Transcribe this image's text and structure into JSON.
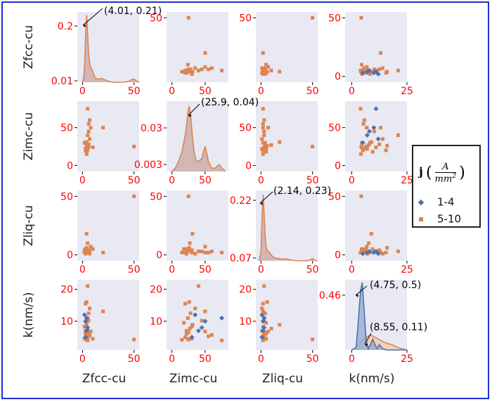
{
  "chart_data": {
    "type": "pairplot",
    "variables": [
      "Zfcc-cu",
      "Zimc-cu",
      "Zliq-cu",
      "k(nm/s)"
    ],
    "legend": {
      "title": "j(A/mm²)",
      "title_math": {
        "bold": "j",
        "numerator": "A",
        "denominator": "mm",
        "exponent": "2"
      },
      "placement": "right",
      "entries": [
        {
          "label": "1-4",
          "color": "#4c72b0",
          "marker": "diamond"
        },
        {
          "label": "5-10",
          "color": "#dd8452",
          "marker": "square"
        }
      ]
    },
    "colors": {
      "background": "#e8e9f2",
      "tick_red": "#ff0000",
      "frame": "#1f2fcf",
      "density_fill": "#c9a6a0"
    },
    "tick_labels": {
      "r0c0": {
        "y": [
          "0.2",
          "0.01"
        ],
        "x": [
          "0",
          "50"
        ]
      },
      "r0c1": {
        "y": [
          "50"
        ],
        "x": [
          "0",
          "50"
        ]
      },
      "r0c2": {
        "y": [
          "50"
        ],
        "x": [
          "0",
          "50"
        ]
      },
      "r0c3": {
        "y": [
          "50",
          "0"
        ],
        "x": [
          "0",
          "25"
        ]
      },
      "r1c0": {
        "y": [
          "50",
          "0"
        ],
        "x": [
          "0",
          "50"
        ]
      },
      "r1c1": {
        "y": [
          "0.03",
          "0.003"
        ],
        "x": [
          "0",
          "50"
        ]
      },
      "r1c2": {
        "y": [
          "50",
          "0"
        ],
        "x": [
          "0",
          "50"
        ]
      },
      "r1c3": {
        "y": [
          "50",
          "0"
        ],
        "x": [
          "0",
          "25"
        ]
      },
      "r2c0": {
        "y": [
          "50",
          "0"
        ],
        "x": [
          "0",
          "50"
        ]
      },
      "r2c1": {
        "y": [
          "50",
          "0"
        ],
        "x": [
          "0",
          "50"
        ]
      },
      "r2c2": {
        "y": [
          "0.22",
          "0.07"
        ],
        "x": [
          "0",
          "50"
        ]
      },
      "r2c3": {
        "y": [
          "50",
          "0"
        ],
        "x": [
          "0",
          "25"
        ]
      },
      "r3c0": {
        "y": [
          "20",
          "10"
        ],
        "x": [
          "0",
          "50"
        ]
      },
      "r3c1": {
        "y": [
          "20",
          "10"
        ],
        "x": [
          "0",
          "50"
        ]
      },
      "r3c2": {
        "y": [
          "20",
          "10"
        ],
        "x": [
          "0",
          "50"
        ]
      },
      "r3c3": {
        "y": [
          "0.46"
        ],
        "x": [
          "0",
          "25"
        ]
      }
    },
    "annotations": [
      {
        "panel": "r0c0",
        "text": "(4.01, 0.21)"
      },
      {
        "panel": "r1c1",
        "text": "(25.9, 0.04)"
      },
      {
        "panel": "r2c2",
        "text": "(2.14, 0.23)"
      },
      {
        "panel": "r3c3",
        "text": "(4.75, 0.5)"
      },
      {
        "panel": "r3c3",
        "text": "(8.55, 0.11)"
      }
    ],
    "diagonal": {
      "r0c0": {
        "x": [
          0,
          1,
          2,
          3,
          3.5,
          4.01,
          4.5,
          5,
          6,
          7,
          8,
          9,
          10,
          11,
          12,
          14,
          16,
          18,
          20,
          25,
          30,
          35,
          40,
          45,
          48,
          50,
          52,
          55
        ],
        "y": [
          0,
          0.01,
          0.05,
          0.14,
          0.18,
          0.21,
          0.19,
          0.15,
          0.09,
          0.06,
          0.045,
          0.04,
          0.035,
          0.025,
          0.015,
          0.01,
          0.01,
          0.012,
          0.01,
          0.003,
          0,
          0,
          0,
          0.003,
          0.008,
          0.01,
          0.005,
          0
        ]
      },
      "r1c1": {
        "x": [
          0,
          5,
          10,
          15,
          18,
          20,
          22,
          24,
          25.9,
          28,
          30,
          33,
          36,
          40,
          45,
          48,
          50,
          52,
          55,
          60,
          65,
          70,
          72,
          75,
          78,
          80
        ],
        "y": [
          0,
          0.002,
          0.006,
          0.012,
          0.018,
          0.022,
          0.028,
          0.036,
          0.04,
          0.035,
          0.025,
          0.013,
          0.007,
          0.006,
          0.008,
          0.013,
          0.015,
          0.012,
          0.006,
          0.002,
          0.002,
          0.004,
          0.004,
          0.002,
          0.001,
          0
        ]
      },
      "r2c2": {
        "x": [
          -2,
          0,
          1,
          2.14,
          3,
          4,
          5,
          6,
          8,
          10,
          12,
          14,
          16,
          20,
          25,
          30,
          35,
          40,
          45,
          48,
          50,
          52,
          55
        ],
        "y": [
          0,
          0.03,
          0.15,
          0.23,
          0.17,
          0.09,
          0.05,
          0.035,
          0.03,
          0.02,
          0.012,
          0.01,
          0.008,
          0.006,
          0.006,
          0.002,
          0,
          0,
          0,
          0.003,
          0.008,
          0.002,
          0
        ]
      },
      "r3c3_blue": {
        "x": [
          0,
          2,
          3,
          4,
          4.75,
          5.5,
          6.5,
          7.5,
          8.5,
          9.5,
          10.5,
          11.5,
          12.5,
          14,
          16,
          20,
          25
        ],
        "y": [
          0,
          0.02,
          0.22,
          0.44,
          0.5,
          0.32,
          0.07,
          0.01,
          0.04,
          0.08,
          0.04,
          0.01,
          0.04,
          0.01,
          0,
          0,
          0
        ]
      },
      "r3c3_orange": {
        "x": [
          0,
          2,
          4,
          6,
          8.55,
          10,
          12,
          15,
          18,
          20,
          22,
          24,
          25
        ],
        "y": [
          0,
          0.02,
          0.06,
          0.09,
          0.11,
          0.1,
          0.08,
          0.055,
          0.04,
          0.025,
          0.012,
          0.004,
          0
        ]
      }
    },
    "points": {
      "zfcc": [
        4,
        5,
        6,
        3,
        2,
        4,
        5,
        6,
        7,
        3,
        4,
        5,
        8,
        6,
        2,
        3,
        5,
        4,
        6,
        20,
        50,
        10,
        7,
        5
      ],
      "zimc": [
        15,
        20,
        25,
        22,
        30,
        18,
        24,
        28,
        35,
        20,
        26,
        40,
        50,
        55,
        30,
        22,
        27,
        31,
        45,
        50,
        25,
        24,
        60,
        75
      ],
      "zliq": [
        2,
        3,
        4,
        1,
        2,
        5,
        3,
        4,
        1,
        2,
        6,
        3,
        7,
        2,
        4,
        5,
        10,
        18,
        3,
        2,
        50,
        5,
        3,
        2
      ],
      "k": [
        4.2,
        5,
        6.5,
        7,
        8.3,
        9.5,
        11,
        12.5,
        14,
        15.5,
        16,
        21,
        6.8,
        5.3,
        4.6,
        6.1,
        7.7,
        8.9,
        10.2,
        13.1,
        4.3,
        4.5,
        5.7,
        4.0
      ],
      "zfcc_b": [
        3,
        4,
        5,
        3,
        2,
        4
      ],
      "zimc_b": [
        30,
        40,
        45,
        50,
        35,
        75
      ],
      "zliq_b": [
        1,
        2,
        3,
        2,
        1,
        3
      ],
      "k_b": [
        5,
        7,
        8,
        10,
        12,
        11
      ]
    }
  }
}
